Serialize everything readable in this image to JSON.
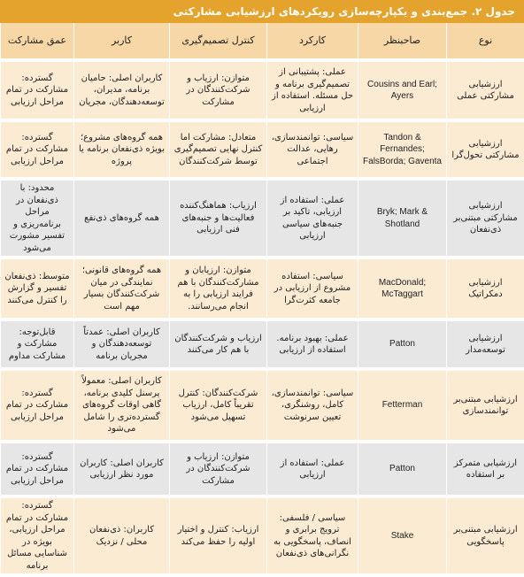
{
  "title": "جدول ۲. جمع‌بندی و یکپارچه‌سازی رویکردهای ارزشیابی مشارکتی",
  "headers": [
    "نوع",
    "صاحبنظر",
    "کارکرد",
    "کنترل تصمیم‌گیری",
    "کاربر",
    "عمق مشارکت"
  ],
  "rows": [
    {
      "type": "ارزشیابی مشارکتی عملی",
      "author": "Cousins and Earl; Ayers",
      "function": "عملی: پشتیبانی از تصمیم‌گیری برنامه و حل مسئله. استفاده از ارزیابی",
      "control": "متوازن: ارزیاب و شرکت‌کنندگان در مشارکت",
      "user": "کاربران اصلی: حامیان برنامه، مدیران، توسعه‌دهندگان، مجریان",
      "depth": "گسترده: مشارکت در تمام مراحل ارزیابی"
    },
    {
      "type": "ارزشیابی مشارکتی تحول‌گرا",
      "author": "Tandon & Fernandes; FalsBorda; Gaventa",
      "function": "سیاسی: توانمندسازی، رهایی، عدالت اجتماعی",
      "control": "متعادل: مشارکت اما کنترل نهایی تصمیم‌گیری توسط شرکت‌کنندگان",
      "user": "همه گروه‌های مشروع؛ بویژه ذی‌نفعان برنامه یا پروژه",
      "depth": "گسترده: مشارکت در تمام مراحل ارزیابی"
    },
    {
      "type": "ارزشیابی مشارکتی مبتنی‌بر ذی‌نفعان",
      "author": "Bryk; Mark & Shotland",
      "function": "عملی: استفاده از ارزیابی، تاکید بر جنبه‌های سیاسی ارزیابی",
      "control": "ارزیاب: هماهنگ‌کننده فعالیت‌ها و جنبه‌های فنی ارزیابی",
      "user": "همه گروه‌های ذی‌نفع",
      "depth": "محدود: با ذی‌نفعان در مراحل برنامه‌ریزی و تفسیر مشورت می‌شود"
    },
    {
      "type": "ارزشیابی دمکراتیک",
      "author": "MacDonald; McTaggart",
      "function": "سیاسی: استفاده مشروع از ارزیابی در جامعه کثرت‌گرا",
      "control": "متوازن: ارزیابان و مشارکت‌کنندگان با هم فرایند ارزیابی را به انجام می‌رسانند.",
      "user": "همه گروه‌های قانونی؛ نمایندگی در میان شرکت‌کنندگان بسیار مهم است",
      "depth": "متوسط: ذی‌نفعان تفسیر و گزارش را کنترل می‌کنند"
    },
    {
      "type": "ارزشیابی توسعه‌مدار",
      "author": "Patton",
      "function": "عملی: بهبود برنامه. استفاده از ارزیابی",
      "control": "ارزیاب و شرکت‌کنندگان با هم کار می‌کنند",
      "user": "کاربران اصلی: عمدتاً توسعه‌دهندگان و مجریان برنامه",
      "depth": "قابل‌توجه: مشارکت و مشارکت مداوم"
    },
    {
      "type": "ارزشیابی مبتنی‌بر توانمندسازی",
      "author": "Fetterman",
      "function": "سیاسی: توانمندسازی، کامل، روشنگری، تعیین سرنوشت",
      "control": "شرکت‌کنندگان: کنترل تقریباً کامل، ارزیاب تسهیل می‌شود",
      "user": "کاربران اصلی: معمولاً پرسنل کلیدی برنامه، گاهی اوقات گروه‌های گسترده‌تری را شامل می‌شود",
      "depth": "گسترده: مشارکت در تمام مراحل ارزیابی"
    },
    {
      "type": "ارزشیابی متمرکز بر استفاده",
      "author": "Patton",
      "function": "عملی: استفاده از ارزیابی",
      "control": "متوازن: ارزیاب و شرکت‌کنندگان در مشارکت",
      "user": "کاربران اصلی: کاربران مورد نظر ارزیابی",
      "depth": "گسترده: مشارکت در تمام مراحل ارزیابی"
    },
    {
      "type": "ارزشیابی مبتنی‌بر پاسخگویی",
      "author": "Stake",
      "function": "سیاسی / فلسفی: ترویج برابری و انصاف، پاسخگویی به نگرانی‌های ذی‌نفعان",
      "control": "ارزیاب: کنترل و اختیار اولیه را حفظ می‌کند",
      "user": "کاربران: ذی‌نفعان محلی / نزدیک",
      "depth": "گسترده: مشارکت در تمام مراحل ارزیابی، بویژه در شناسایی مسائل برنامه"
    }
  ],
  "colors": {
    "title_bg": "#e3a32c",
    "header_bg": "#f6d7a5",
    "row_warm": "#fcebd3",
    "row_gray": "#e6e6e6"
  }
}
